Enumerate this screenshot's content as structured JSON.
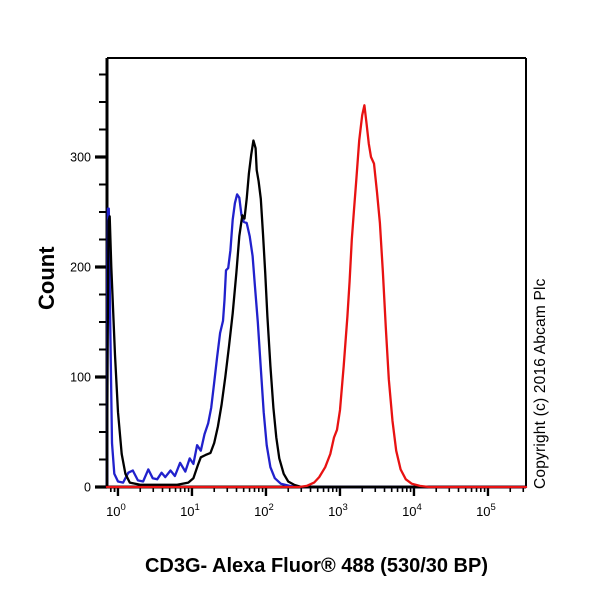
{
  "title": "CD3G- Alexa Fluor® 488 (530/30 BP)",
  "ylabel": "Count",
  "copyright": "Copyright (c) 2016 Abcam Plc",
  "colors": {
    "axis": "#000000",
    "background": "#ffffff"
  },
  "chart_data": {
    "type": "line",
    "subtype": "flow-cytometry-histogram",
    "title": "CD3G- Alexa Fluor® 488 (530/30 BP)",
    "xlabel": "CD3G- Alexa Fluor® 488 (530/30 BP)",
    "ylabel": "Count",
    "x_scale": "log10",
    "x_range_log": [
      -0.148,
      5.514
    ],
    "x_decade_exponents": [
      0,
      1,
      2,
      3,
      4,
      5
    ],
    "ylim": [
      0,
      390
    ],
    "y_major_ticks": [
      0,
      100,
      200,
      300
    ],
    "y_minor_step": 25,
    "y_minor_max": 375,
    "grid": "off",
    "legend": "none",
    "series": [
      {
        "name": "blue-curve",
        "color": "#2121cc",
        "points": [
          [
            -0.148,
            0
          ],
          [
            -0.142,
            180
          ],
          [
            -0.136,
            253
          ],
          [
            -0.124,
            253
          ],
          [
            -0.105,
            150
          ],
          [
            -0.08,
            40
          ],
          [
            -0.05,
            12
          ],
          [
            0.0,
            5
          ],
          [
            0.07,
            4
          ],
          [
            0.14,
            13
          ],
          [
            0.2,
            15
          ],
          [
            0.27,
            6
          ],
          [
            0.34,
            5
          ],
          [
            0.41,
            16
          ],
          [
            0.47,
            8
          ],
          [
            0.53,
            7
          ],
          [
            0.59,
            13
          ],
          [
            0.64,
            9
          ],
          [
            0.71,
            15
          ],
          [
            0.77,
            10
          ],
          [
            0.84,
            22
          ],
          [
            0.91,
            14
          ],
          [
            0.97,
            26
          ],
          [
            1.02,
            21
          ],
          [
            1.07,
            38
          ],
          [
            1.12,
            33
          ],
          [
            1.17,
            48
          ],
          [
            1.22,
            58
          ],
          [
            1.26,
            72
          ],
          [
            1.3,
            95
          ],
          [
            1.34,
            118
          ],
          [
            1.38,
            140
          ],
          [
            1.42,
            151
          ],
          [
            1.44,
            170
          ],
          [
            1.46,
            197
          ],
          [
            1.49,
            199
          ],
          [
            1.52,
            215
          ],
          [
            1.55,
            243
          ],
          [
            1.58,
            258
          ],
          [
            1.61,
            266
          ],
          [
            1.64,
            263
          ],
          [
            1.67,
            247
          ],
          [
            1.7,
            241
          ],
          [
            1.74,
            240
          ],
          [
            1.78,
            228
          ],
          [
            1.82,
            210
          ],
          [
            1.85,
            183
          ],
          [
            1.89,
            150
          ],
          [
            1.93,
            108
          ],
          [
            1.97,
            68
          ],
          [
            2.01,
            38
          ],
          [
            2.06,
            18
          ],
          [
            2.12,
            8
          ],
          [
            2.2,
            3
          ],
          [
            2.32,
            1
          ],
          [
            2.45,
            0
          ],
          [
            5.514,
            0
          ]
        ]
      },
      {
        "name": "black-curve",
        "color": "#000000",
        "points": [
          [
            -0.148,
            0
          ],
          [
            -0.14,
            120
          ],
          [
            -0.128,
            242
          ],
          [
            -0.112,
            246
          ],
          [
            -0.09,
            200
          ],
          [
            -0.04,
            120
          ],
          [
            0.0,
            68
          ],
          [
            0.05,
            30
          ],
          [
            0.1,
            12
          ],
          [
            0.16,
            4
          ],
          [
            0.3,
            2
          ],
          [
            0.55,
            2
          ],
          [
            0.8,
            2
          ],
          [
            0.95,
            4
          ],
          [
            1.02,
            8
          ],
          [
            1.08,
            20
          ],
          [
            1.12,
            27
          ],
          [
            1.18,
            29
          ],
          [
            1.25,
            31
          ],
          [
            1.3,
            40
          ],
          [
            1.35,
            55
          ],
          [
            1.4,
            75
          ],
          [
            1.45,
            100
          ],
          [
            1.5,
            128
          ],
          [
            1.55,
            158
          ],
          [
            1.6,
            195
          ],
          [
            1.64,
            228
          ],
          [
            1.68,
            247
          ],
          [
            1.71,
            244
          ],
          [
            1.74,
            262
          ],
          [
            1.77,
            285
          ],
          [
            1.8,
            302
          ],
          [
            1.83,
            315
          ],
          [
            1.86,
            308
          ],
          [
            1.875,
            288
          ],
          [
            1.9,
            278
          ],
          [
            1.93,
            262
          ],
          [
            1.96,
            230
          ],
          [
            1.99,
            195
          ],
          [
            2.02,
            155
          ],
          [
            2.06,
            110
          ],
          [
            2.1,
            72
          ],
          [
            2.14,
            45
          ],
          [
            2.18,
            26
          ],
          [
            2.24,
            12
          ],
          [
            2.3,
            5
          ],
          [
            2.38,
            2
          ],
          [
            2.48,
            0
          ],
          [
            5.514,
            0
          ]
        ]
      },
      {
        "name": "red-curve",
        "color": "#e81212",
        "points": [
          [
            -0.148,
            0
          ],
          [
            2.45,
            0
          ],
          [
            2.55,
            1
          ],
          [
            2.65,
            4
          ],
          [
            2.72,
            9
          ],
          [
            2.8,
            18
          ],
          [
            2.87,
            30
          ],
          [
            2.92,
            45
          ],
          [
            2.96,
            52
          ],
          [
            3.0,
            70
          ],
          [
            3.05,
            110
          ],
          [
            3.1,
            155
          ],
          [
            3.13,
            187
          ],
          [
            3.16,
            225
          ],
          [
            3.19,
            252
          ],
          [
            3.22,
            278
          ],
          [
            3.26,
            315
          ],
          [
            3.3,
            338
          ],
          [
            3.33,
            347
          ],
          [
            3.36,
            330
          ],
          [
            3.39,
            312
          ],
          [
            3.42,
            300
          ],
          [
            3.46,
            294
          ],
          [
            3.5,
            268
          ],
          [
            3.54,
            240
          ],
          [
            3.58,
            195
          ],
          [
            3.62,
            145
          ],
          [
            3.66,
            98
          ],
          [
            3.71,
            60
          ],
          [
            3.76,
            33
          ],
          [
            3.82,
            16
          ],
          [
            3.89,
            7
          ],
          [
            3.97,
            3
          ],
          [
            4.08,
            1
          ],
          [
            4.2,
            0
          ],
          [
            5.514,
            0
          ]
        ]
      }
    ],
    "peaks_note": {
      "blue_peak_count": 266,
      "black_peak_count": 315,
      "red_peak_count": 347,
      "left_edge_spike_count": 253
    }
  }
}
